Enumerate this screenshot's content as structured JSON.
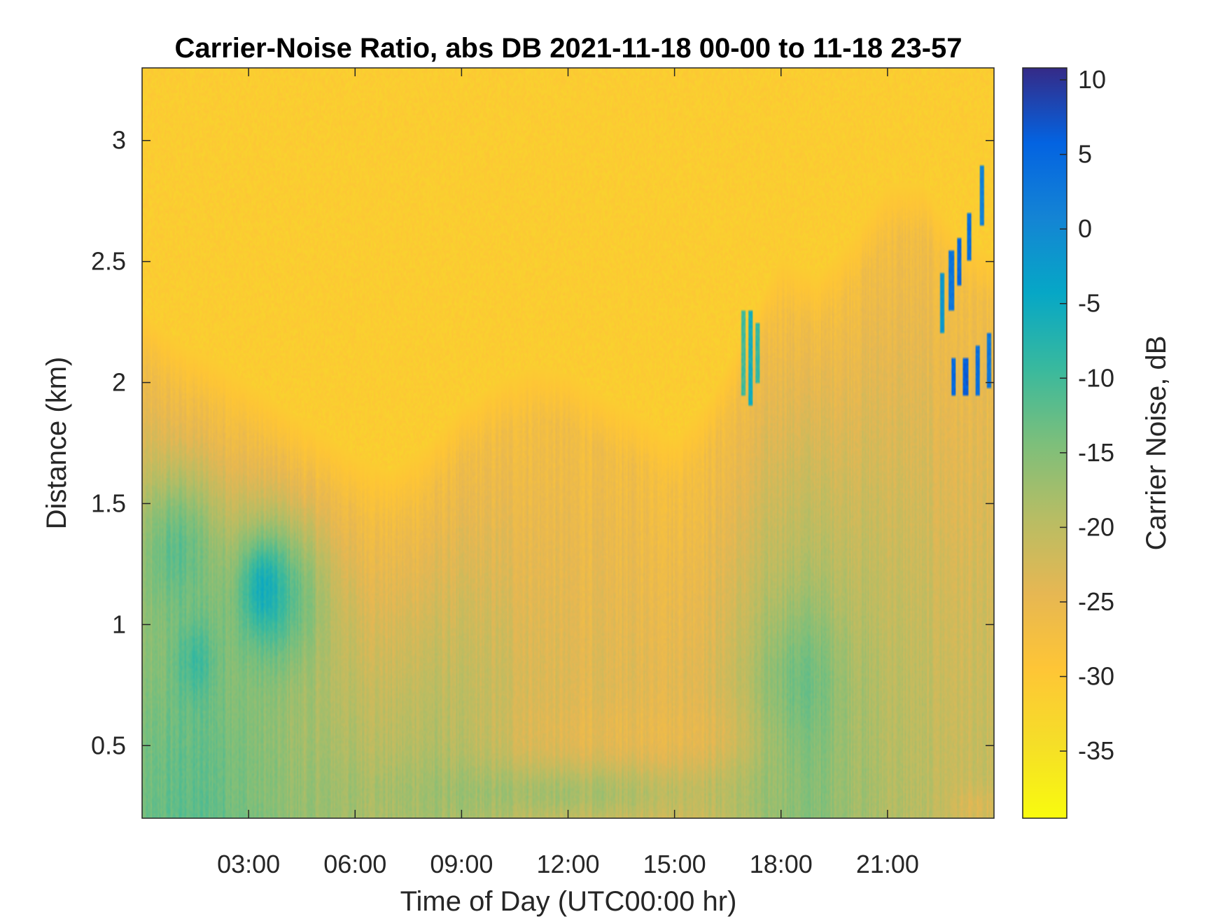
{
  "chart_data": {
    "type": "heatmap",
    "title": "Carrier-Noise Ratio, abs DB 2021-11-18 00-00 to 11-18 23-57",
    "xlabel": "Time of Day (UTC00:00 hr)",
    "ylabel": "Distance (km)",
    "xlim": [
      0,
      24
    ],
    "ylim": [
      0.2,
      3.3
    ],
    "x_ticks": [
      {
        "value": 3,
        "label": "03:00"
      },
      {
        "value": 6,
        "label": "06:00"
      },
      {
        "value": 9,
        "label": "09:00"
      },
      {
        "value": 12,
        "label": "12:00"
      },
      {
        "value": 15,
        "label": "15:00"
      },
      {
        "value": 18,
        "label": "18:00"
      },
      {
        "value": 21,
        "label": "21:00"
      }
    ],
    "y_ticks": [
      {
        "value": 0.5,
        "label": "0.5"
      },
      {
        "value": 1,
        "label": "1"
      },
      {
        "value": 1.5,
        "label": "1.5"
      },
      {
        "value": 2,
        "label": "2"
      },
      {
        "value": 2.5,
        "label": "2.5"
      },
      {
        "value": 3,
        "label": "3"
      }
    ],
    "colorbar": {
      "label": "Carrier Noise, dB",
      "range": [
        -39.5,
        10.8
      ],
      "ticks": [
        {
          "value": 10,
          "label": "10"
        },
        {
          "value": 5,
          "label": "5"
        },
        {
          "value": 0,
          "label": "0"
        },
        {
          "value": -5,
          "label": "-5"
        },
        {
          "value": -10,
          "label": "-10"
        },
        {
          "value": -15,
          "label": "-15"
        },
        {
          "value": -20,
          "label": "-20"
        },
        {
          "value": -25,
          "label": "-25"
        },
        {
          "value": -30,
          "label": "-30"
        },
        {
          "value": -35,
          "label": "-35"
        }
      ],
      "colormap": "parula"
    },
    "background_value": -31,
    "signal_top_km": [
      [
        0,
        2.08
      ],
      [
        1,
        1.95
      ],
      [
        2,
        1.88
      ],
      [
        3,
        1.78
      ],
      [
        4,
        1.68
      ],
      [
        5,
        1.58
      ],
      [
        6,
        1.48
      ],
      [
        7,
        1.42
      ],
      [
        8,
        1.52
      ],
      [
        9,
        1.68
      ],
      [
        10,
        1.78
      ],
      [
        11,
        1.85
      ],
      [
        12,
        1.82
      ],
      [
        13,
        1.72
      ],
      [
        14,
        1.65
      ],
      [
        15,
        1.55
      ],
      [
        16,
        1.72
      ],
      [
        17,
        2.0
      ],
      [
        18,
        2.3
      ],
      [
        19,
        2.22
      ],
      [
        20,
        2.38
      ],
      [
        21,
        2.6
      ],
      [
        22,
        2.6
      ],
      [
        23,
        2.4
      ],
      [
        24,
        2.3
      ]
    ],
    "signal_surface_value": [
      [
        0,
        -14
      ],
      [
        1,
        -12
      ],
      [
        2,
        -12
      ],
      [
        3,
        -14
      ],
      [
        4,
        -16
      ],
      [
        5,
        -17
      ],
      [
        6,
        -18
      ],
      [
        7,
        -19
      ],
      [
        8,
        -18
      ],
      [
        9,
        -19
      ],
      [
        10,
        -20
      ],
      [
        11,
        -22
      ],
      [
        12,
        -23
      ],
      [
        13,
        -23
      ],
      [
        14,
        -23
      ],
      [
        15,
        -23
      ],
      [
        16,
        -22
      ],
      [
        17,
        -19
      ],
      [
        18,
        -16
      ],
      [
        19,
        -15
      ],
      [
        20,
        -17
      ],
      [
        21,
        -19
      ],
      [
        22,
        -20
      ],
      [
        23,
        -21
      ],
      [
        24,
        -21
      ]
    ],
    "features": [
      {
        "t": 1.5,
        "d": 0.85,
        "r_t": 0.55,
        "r_d": 0.18,
        "v": -9
      },
      {
        "t": 3.7,
        "d": 1.12,
        "r_t": 1.3,
        "r_d": 0.32,
        "v": -8
      },
      {
        "t": 3.4,
        "d": 1.15,
        "r_t": 0.45,
        "r_d": 0.15,
        "v": -5
      },
      {
        "t": 1.0,
        "d": 1.3,
        "r_t": 1.0,
        "r_d": 0.3,
        "v": -11
      },
      {
        "t": 14.0,
        "d": 0.55,
        "r_t": 3.0,
        "r_d": 0.15,
        "v": -25
      },
      {
        "t": 18.6,
        "d": 0.75,
        "r_t": 1.0,
        "r_d": 0.3,
        "v": -13
      },
      {
        "t": 11.0,
        "d": 0.3,
        "r_t": 6.0,
        "r_d": 0.12,
        "v": -17
      },
      {
        "t": 23.5,
        "d": 0.25,
        "r_t": 0.6,
        "r_d": 0.08,
        "v": -24
      }
    ],
    "streaks": [
      {
        "t": 16.95,
        "d_from": 1.95,
        "d_to": 2.3,
        "v": -10
      },
      {
        "t": 17.15,
        "d_from": 1.9,
        "d_to": 2.3,
        "v": -6
      },
      {
        "t": 17.35,
        "d_from": 2.0,
        "d_to": 2.25,
        "v": -9
      },
      {
        "t": 22.55,
        "d_from": 2.2,
        "d_to": 2.45,
        "v": -2
      },
      {
        "t": 22.8,
        "d_from": 2.3,
        "d_to": 2.55,
        "v": 3
      },
      {
        "t": 23.0,
        "d_from": 2.4,
        "d_to": 2.6,
        "v": 5
      },
      {
        "t": 23.3,
        "d_from": 2.5,
        "d_to": 2.7,
        "v": 4
      },
      {
        "t": 23.65,
        "d_from": 2.65,
        "d_to": 2.9,
        "v": 1
      },
      {
        "t": 22.85,
        "d_from": 1.95,
        "d_to": 2.1,
        "v": 5
      },
      {
        "t": 23.2,
        "d_from": 1.95,
        "d_to": 2.1,
        "v": 6
      },
      {
        "t": 23.55,
        "d_from": 1.95,
        "d_to": 2.15,
        "v": 4
      },
      {
        "t": 23.85,
        "d_from": 1.98,
        "d_to": 2.2,
        "v": 3
      }
    ]
  }
}
